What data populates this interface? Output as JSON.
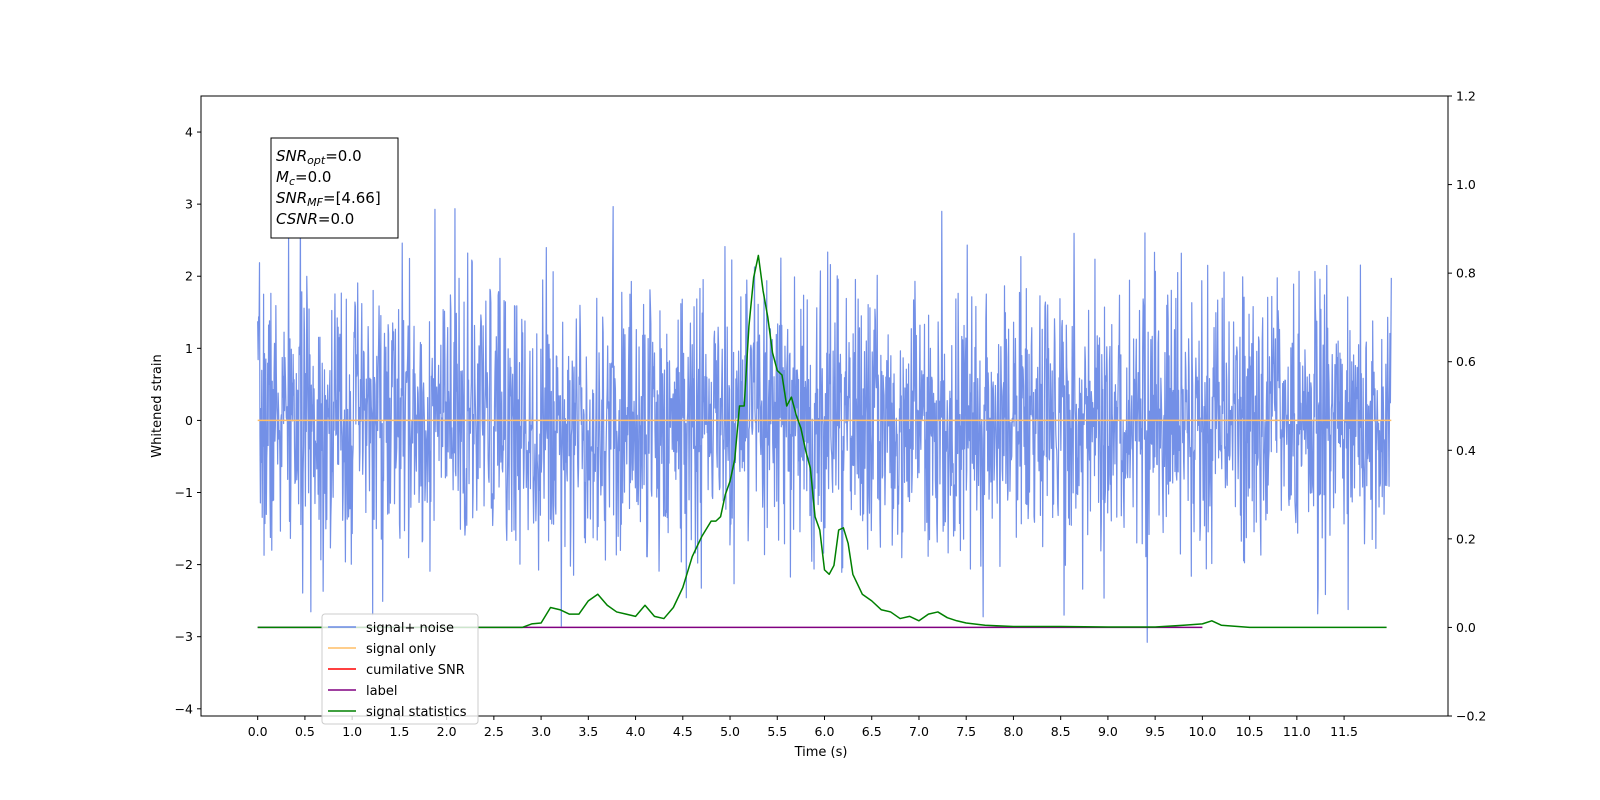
{
  "chart_data": {
    "type": "line",
    "title": "",
    "xlabel": "Time (s)",
    "ylabel": "Whitened strain",
    "xlim": [
      -0.6,
      12.6
    ],
    "ylim": [
      -4.1,
      4.5
    ],
    "y2lim": [
      -0.2,
      1.2
    ],
    "x_ticks": [
      0.0,
      0.5,
      1.0,
      1.5,
      2.0,
      2.5,
      3.0,
      3.5,
      4.0,
      4.5,
      5.0,
      5.5,
      6.0,
      6.5,
      7.0,
      7.5,
      8.0,
      8.5,
      9.0,
      9.5,
      10.0,
      10.5,
      11.0,
      11.5
    ],
    "x_tick_labels": [
      "0.0",
      "0.5",
      "1.0",
      "1.5",
      "2.0",
      "2.5",
      "3.0",
      "3.5",
      "4.0",
      "4.5",
      "5.0",
      "5.5",
      "6.0",
      "6.5",
      "7.0",
      "7.5",
      "8.0",
      "8.5",
      "9.0",
      "9.5",
      "10.0",
      "10.5",
      "11.0",
      "11.5"
    ],
    "y_ticks": [
      -4,
      -3,
      -2,
      -1,
      0,
      1,
      2,
      3,
      4
    ],
    "y_tick_labels": [
      "−4",
      "−3",
      "−2",
      "−1",
      "0",
      "1",
      "2",
      "3",
      "4"
    ],
    "y2_ticks": [
      -0.2,
      0.0,
      0.2,
      0.4,
      0.6,
      0.8,
      1.0,
      1.2
    ],
    "y2_tick_labels": [
      "−0.2",
      "0.0",
      "0.2",
      "0.4",
      "0.6",
      "0.8",
      "1.0",
      "1.2"
    ],
    "grid": false,
    "legend_position": "bottom-left",
    "series": [
      {
        "name": "signal+ noise",
        "color": "#6b8ae6",
        "axis": "left",
        "kind": "noise",
        "x_range": [
          0.0,
          12.0
        ],
        "std": 0.95,
        "seed": 7
      },
      {
        "name": "signal only",
        "color": "#ffbe66",
        "axis": "left",
        "x": [
          0.0,
          12.0
        ],
        "y": [
          0.0,
          0.0
        ]
      },
      {
        "name": "cumilative SNR",
        "color": "#ff0000",
        "axis": "right",
        "x": [],
        "y": []
      },
      {
        "name": "label",
        "color": "#800080",
        "axis": "right",
        "x": [
          0.0,
          10.0
        ],
        "y": [
          0.0,
          0.0
        ]
      },
      {
        "name": "signal statistics",
        "color": "#008000",
        "axis": "right",
        "x": [
          0.0,
          2.8,
          2.9,
          3.0,
          3.1,
          3.2,
          3.3,
          3.4,
          3.5,
          3.6,
          3.7,
          3.8,
          3.9,
          4.0,
          4.1,
          4.2,
          4.3,
          4.4,
          4.5,
          4.6,
          4.7,
          4.8,
          4.85,
          4.9,
          4.95,
          5.0,
          5.05,
          5.1,
          5.15,
          5.2,
          5.25,
          5.3,
          5.35,
          5.4,
          5.45,
          5.5,
          5.55,
          5.6,
          5.65,
          5.7,
          5.75,
          5.8,
          5.85,
          5.9,
          5.95,
          6.0,
          6.05,
          6.1,
          6.15,
          6.2,
          6.25,
          6.3,
          6.4,
          6.5,
          6.6,
          6.7,
          6.8,
          6.9,
          7.0,
          7.1,
          7.2,
          7.3,
          7.4,
          7.5,
          7.7,
          8.0,
          8.5,
          9.0,
          9.5,
          9.8,
          10.0,
          10.1,
          10.2,
          10.5,
          11.0,
          11.5,
          11.95
        ],
        "y": [
          0.0,
          0.0,
          0.008,
          0.01,
          0.045,
          0.04,
          0.03,
          0.03,
          0.06,
          0.075,
          0.05,
          0.035,
          0.03,
          0.025,
          0.05,
          0.025,
          0.02,
          0.045,
          0.09,
          0.16,
          0.205,
          0.24,
          0.24,
          0.25,
          0.3,
          0.33,
          0.38,
          0.5,
          0.5,
          0.68,
          0.79,
          0.84,
          0.76,
          0.7,
          0.62,
          0.58,
          0.57,
          0.5,
          0.52,
          0.48,
          0.45,
          0.4,
          0.36,
          0.25,
          0.22,
          0.13,
          0.12,
          0.14,
          0.22,
          0.225,
          0.19,
          0.12,
          0.075,
          0.06,
          0.04,
          0.035,
          0.02,
          0.025,
          0.015,
          0.03,
          0.035,
          0.022,
          0.015,
          0.01,
          0.005,
          0.002,
          0.002,
          0.001,
          0.001,
          0.005,
          0.008,
          0.015,
          0.005,
          0.0,
          0.0,
          0.0,
          0.0
        ]
      }
    ],
    "annotations": [
      {
        "base": "SNR",
        "sub": "opt",
        "rest": "=0.0"
      },
      {
        "base": "M",
        "sub": "c",
        "rest": "=0.0"
      },
      {
        "base": "SNR",
        "sub": "MF",
        "rest": "=[4.66]"
      },
      {
        "base": "CSNR",
        "sub": "",
        "rest": "=0.0"
      }
    ]
  }
}
